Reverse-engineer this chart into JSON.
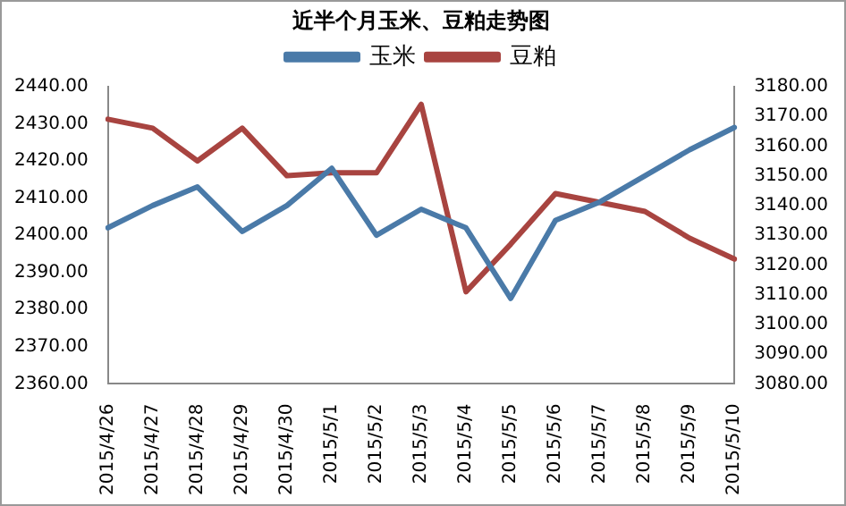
{
  "chart_data": {
    "type": "line",
    "title": "近半个月玉米、豆粕走势图",
    "categories": [
      "2015/4/26",
      "2015/4/27",
      "2015/4/28",
      "2015/4/29",
      "2015/4/30",
      "2015/5/1",
      "2015/5/2",
      "2015/5/3",
      "2015/5/4",
      "2015/5/5",
      "2015/5/6",
      "2015/5/7",
      "2015/5/8",
      "2015/5/9",
      "2015/5/10"
    ],
    "series": [
      {
        "name": "玉米",
        "color": "#4a7aa8",
        "values": [
          2402,
          2408,
          2413,
          2401,
          2408,
          2418,
          2400,
          2407,
          2402,
          2383,
          2404,
          2409,
          2416,
          2423,
          2429
        ]
      },
      {
        "name": "豆粕",
        "color": "#a84440",
        "axis": "y2",
        "values": [
          3169,
          3166,
          3155,
          3166,
          3150,
          3151,
          3151,
          3174,
          3111,
          3127,
          3144,
          3141,
          3138,
          3129,
          3122
        ]
      }
    ],
    "ylim": [
      2360,
      2440
    ],
    "yticks": [
      {
        "value": 2360,
        "label": "2360.00"
      },
      {
        "value": 2370,
        "label": "2370.00"
      },
      {
        "value": 2380,
        "label": "2380.00"
      },
      {
        "value": 2390,
        "label": "2390.00"
      },
      {
        "value": 2400,
        "label": "2400.00"
      },
      {
        "value": 2410,
        "label": "2410.00"
      },
      {
        "value": 2420,
        "label": "2420.00"
      },
      {
        "value": 2430,
        "label": "2430.00"
      },
      {
        "value": 2440,
        "label": "2440.00"
      }
    ],
    "y2lim": [
      3080,
      3180
    ],
    "y2ticks": [
      {
        "value": 3080,
        "label": "3080.00"
      },
      {
        "value": 3090,
        "label": "3090.00"
      },
      {
        "value": 3100,
        "label": "3100.00"
      },
      {
        "value": 3110,
        "label": "3110.00"
      },
      {
        "value": 3120,
        "label": "3120.00"
      },
      {
        "value": 3130,
        "label": "3130.00"
      },
      {
        "value": 3140,
        "label": "3140.00"
      },
      {
        "value": 3150,
        "label": "3150.00"
      },
      {
        "value": 3160,
        "label": "3160.00"
      },
      {
        "value": 3170,
        "label": "3170.00"
      },
      {
        "value": 3180,
        "label": "3180.00"
      }
    ],
    "legend": "top",
    "grid": false,
    "marker": "none",
    "line_style": "solid"
  }
}
